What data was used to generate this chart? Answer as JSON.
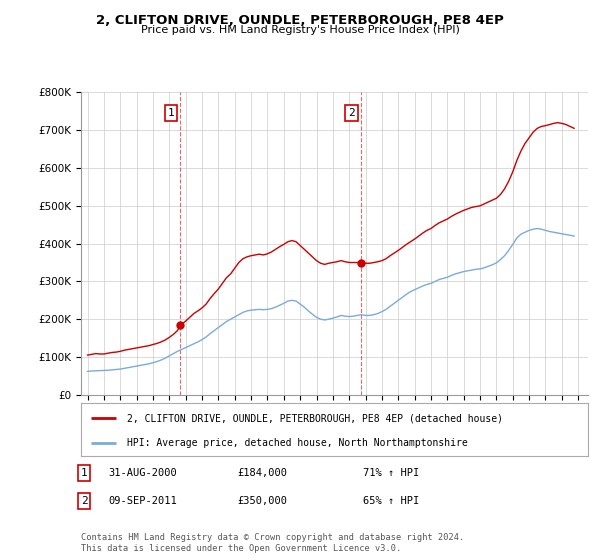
{
  "title": "2, CLIFTON DRIVE, OUNDLE, PETERBOROUGH, PE8 4EP",
  "subtitle": "Price paid vs. HM Land Registry's House Price Index (HPI)",
  "legend_line1": "2, CLIFTON DRIVE, OUNDLE, PETERBOROUGH, PE8 4EP (detached house)",
  "legend_line2": "HPI: Average price, detached house, North Northamptonshire",
  "footer": "Contains HM Land Registry data © Crown copyright and database right 2024.\nThis data is licensed under the Open Government Licence v3.0.",
  "annotation1_date": "31-AUG-2000",
  "annotation1_price": "£184,000",
  "annotation1_hpi": "71% ↑ HPI",
  "annotation2_date": "09-SEP-2011",
  "annotation2_price": "£350,000",
  "annotation2_hpi": "65% ↑ HPI",
  "red_color": "#cc0000",
  "blue_color": "#7aabdc",
  "ylim": [
    0,
    800000
  ],
  "yticks": [
    0,
    100000,
    200000,
    300000,
    400000,
    500000,
    600000,
    700000,
    800000
  ],
  "xlim_start": 1994.6,
  "xlim_end": 2025.6,
  "marker1_x": 2000.67,
  "marker1_y_red": 184000,
  "marker2_x": 2011.69,
  "marker2_y_red": 350000,
  "red_x": [
    1995.0,
    1995.25,
    1995.5,
    1995.75,
    1996.0,
    1996.25,
    1996.5,
    1996.75,
    1997.0,
    1997.25,
    1997.5,
    1997.75,
    1998.0,
    1998.25,
    1998.5,
    1998.75,
    1999.0,
    1999.25,
    1999.5,
    1999.75,
    2000.0,
    2000.25,
    2000.5,
    2000.67,
    2001.0,
    2001.25,
    2001.5,
    2001.75,
    2002.0,
    2002.25,
    2002.5,
    2002.75,
    2003.0,
    2003.25,
    2003.5,
    2003.75,
    2004.0,
    2004.25,
    2004.5,
    2004.75,
    2005.0,
    2005.25,
    2005.5,
    2005.75,
    2006.0,
    2006.25,
    2006.5,
    2006.75,
    2007.0,
    2007.25,
    2007.5,
    2007.75,
    2008.0,
    2008.25,
    2008.5,
    2008.75,
    2009.0,
    2009.25,
    2009.5,
    2009.75,
    2010.0,
    2010.25,
    2010.5,
    2010.75,
    2011.0,
    2011.25,
    2011.5,
    2011.69,
    2012.0,
    2012.25,
    2012.5,
    2012.75,
    2013.0,
    2013.25,
    2013.5,
    2013.75,
    2014.0,
    2014.25,
    2014.5,
    2014.75,
    2015.0,
    2015.25,
    2015.5,
    2015.75,
    2016.0,
    2016.25,
    2016.5,
    2016.75,
    2017.0,
    2017.25,
    2017.5,
    2017.75,
    2018.0,
    2018.25,
    2018.5,
    2018.75,
    2019.0,
    2019.25,
    2019.5,
    2019.75,
    2020.0,
    2020.25,
    2020.5,
    2020.75,
    2021.0,
    2021.25,
    2021.5,
    2021.75,
    2022.0,
    2022.25,
    2022.5,
    2022.75,
    2023.0,
    2023.25,
    2023.5,
    2023.75,
    2024.0,
    2024.25,
    2024.5,
    2024.75
  ],
  "red_y": [
    105000,
    107000,
    109000,
    108000,
    108000,
    110000,
    112000,
    113000,
    115000,
    118000,
    120000,
    122000,
    124000,
    126000,
    128000,
    130000,
    133000,
    136000,
    140000,
    145000,
    152000,
    160000,
    170000,
    184000,
    195000,
    205000,
    215000,
    222000,
    230000,
    240000,
    255000,
    268000,
    280000,
    295000,
    310000,
    320000,
    335000,
    350000,
    360000,
    365000,
    368000,
    370000,
    372000,
    370000,
    373000,
    378000,
    385000,
    392000,
    398000,
    405000,
    408000,
    405000,
    395000,
    385000,
    375000,
    365000,
    355000,
    348000,
    345000,
    348000,
    350000,
    352000,
    355000,
    352000,
    350000,
    350000,
    350000,
    350000,
    348000,
    348000,
    350000,
    352000,
    355000,
    360000,
    368000,
    375000,
    382000,
    390000,
    398000,
    405000,
    412000,
    420000,
    428000,
    435000,
    440000,
    448000,
    455000,
    460000,
    465000,
    472000,
    478000,
    483000,
    488000,
    492000,
    496000,
    498000,
    500000,
    505000,
    510000,
    515000,
    520000,
    530000,
    545000,
    565000,
    590000,
    620000,
    645000,
    665000,
    680000,
    695000,
    705000,
    710000,
    712000,
    715000,
    718000,
    720000,
    718000,
    715000,
    710000,
    705000
  ],
  "blue_x": [
    1995.0,
    1995.25,
    1995.5,
    1995.75,
    1996.0,
    1996.25,
    1996.5,
    1996.75,
    1997.0,
    1997.25,
    1997.5,
    1997.75,
    1998.0,
    1998.25,
    1998.5,
    1998.75,
    1999.0,
    1999.25,
    1999.5,
    1999.75,
    2000.0,
    2000.25,
    2000.5,
    2000.75,
    2001.0,
    2001.25,
    2001.5,
    2001.75,
    2002.0,
    2002.25,
    2002.5,
    2002.75,
    2003.0,
    2003.25,
    2003.5,
    2003.75,
    2004.0,
    2004.25,
    2004.5,
    2004.75,
    2005.0,
    2005.25,
    2005.5,
    2005.75,
    2006.0,
    2006.25,
    2006.5,
    2006.75,
    2007.0,
    2007.25,
    2007.5,
    2007.75,
    2008.0,
    2008.25,
    2008.5,
    2008.75,
    2009.0,
    2009.25,
    2009.5,
    2009.75,
    2010.0,
    2010.25,
    2010.5,
    2010.75,
    2011.0,
    2011.25,
    2011.5,
    2011.75,
    2012.0,
    2012.25,
    2012.5,
    2012.75,
    2013.0,
    2013.25,
    2013.5,
    2013.75,
    2014.0,
    2014.25,
    2014.5,
    2014.75,
    2015.0,
    2015.25,
    2015.5,
    2015.75,
    2016.0,
    2016.25,
    2016.5,
    2016.75,
    2017.0,
    2017.25,
    2017.5,
    2017.75,
    2018.0,
    2018.25,
    2018.5,
    2018.75,
    2019.0,
    2019.25,
    2019.5,
    2019.75,
    2020.0,
    2020.25,
    2020.5,
    2020.75,
    2021.0,
    2021.25,
    2021.5,
    2021.75,
    2022.0,
    2022.25,
    2022.5,
    2022.75,
    2023.0,
    2023.25,
    2023.5,
    2023.75,
    2024.0,
    2024.25,
    2024.5,
    2024.75
  ],
  "blue_y": [
    62000,
    63000,
    63500,
    64000,
    64500,
    65000,
    66000,
    67000,
    68000,
    70000,
    72000,
    74000,
    76000,
    78000,
    80000,
    82000,
    85000,
    88000,
    92000,
    97000,
    103000,
    109000,
    115000,
    120000,
    125000,
    130000,
    135000,
    140000,
    146000,
    153000,
    162000,
    170000,
    178000,
    186000,
    194000,
    200000,
    206000,
    212000,
    218000,
    222000,
    224000,
    225000,
    226000,
    225000,
    226000,
    228000,
    232000,
    237000,
    242000,
    248000,
    250000,
    248000,
    240000,
    232000,
    222000,
    213000,
    205000,
    200000,
    198000,
    200000,
    203000,
    206000,
    210000,
    208000,
    207000,
    208000,
    210000,
    212000,
    210000,
    210000,
    212000,
    215000,
    220000,
    226000,
    234000,
    242000,
    250000,
    258000,
    266000,
    273000,
    278000,
    283000,
    288000,
    292000,
    295000,
    300000,
    305000,
    308000,
    311000,
    316000,
    320000,
    323000,
    326000,
    328000,
    330000,
    332000,
    333000,
    336000,
    340000,
    344000,
    349000,
    358000,
    368000,
    382000,
    398000,
    415000,
    425000,
    430000,
    435000,
    438000,
    440000,
    438000,
    435000,
    432000,
    430000,
    428000,
    426000,
    424000,
    422000,
    420000
  ]
}
